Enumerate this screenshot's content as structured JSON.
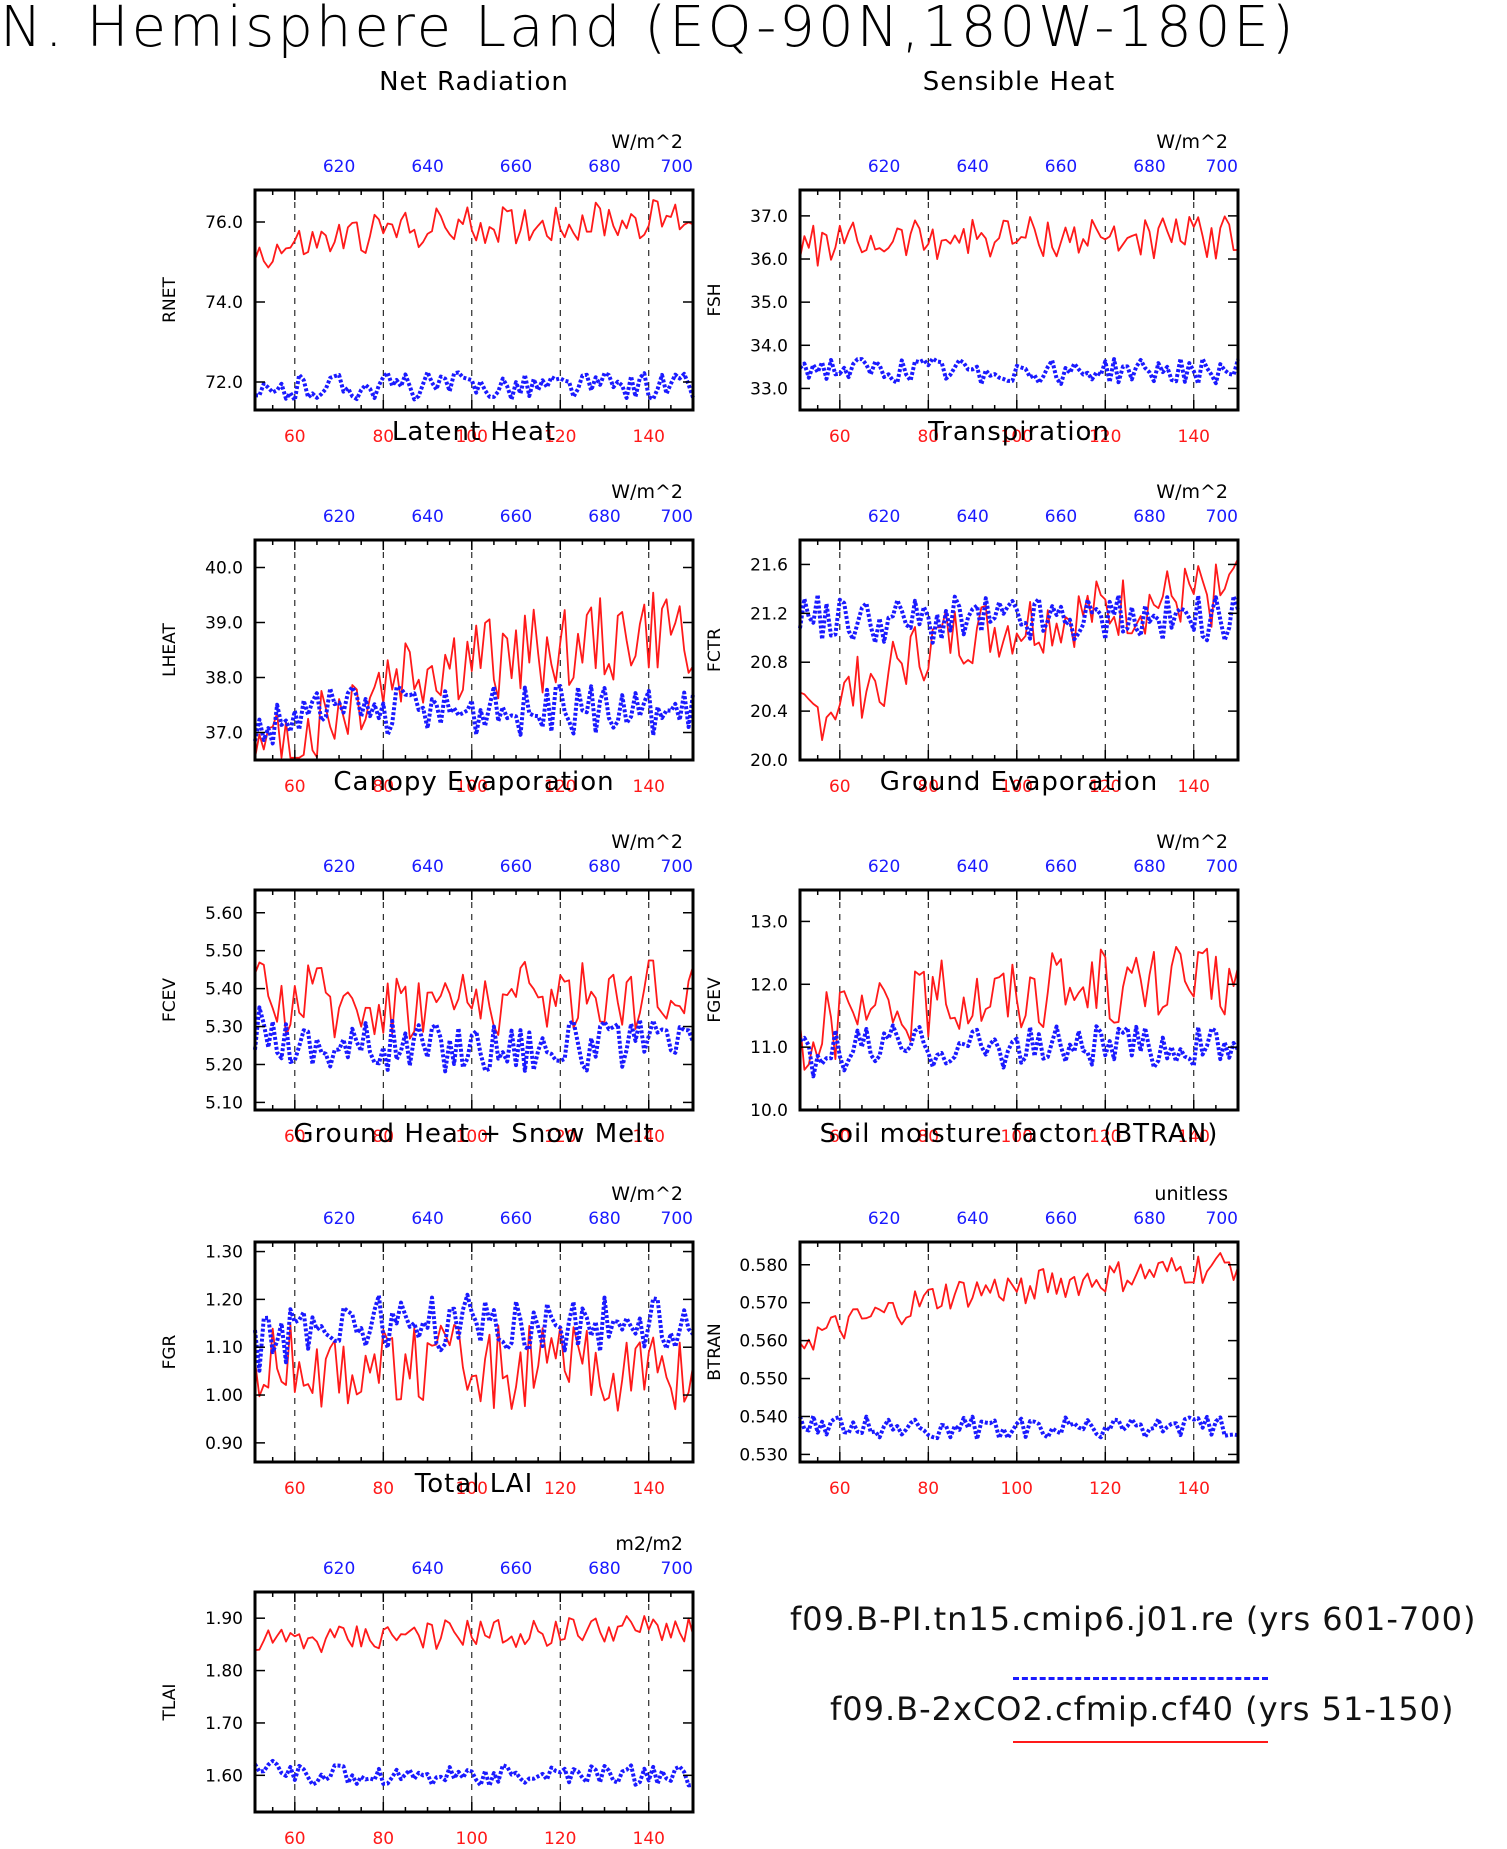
{
  "page": {
    "title": "N. Hemisphere Land (EQ-90N,180W-180E)"
  },
  "legend": [
    {
      "label": "f09.B-PI.tn15.cmip6.j01.re (yrs 601-700)",
      "color": "#1a1aff",
      "style": "dashed"
    },
    {
      "label": "f09.B-2xCO2.cfmip.cf40 (yrs 51-150)",
      "color": "#ff1a1a",
      "style": "solid"
    }
  ],
  "colors": {
    "red": "#ff1a1a",
    "blue": "#1a1aff"
  },
  "axes": {
    "bottom_label_color": "#ff1a1a",
    "top_label_color": "#1a1aff",
    "bottom_ticks": [
      60,
      80,
      100,
      120,
      140
    ],
    "top_ticks": [
      620,
      640,
      660,
      680,
      700
    ],
    "bottom_range": [
      51,
      150
    ],
    "top_range": [
      601,
      700
    ]
  },
  "chart_data": [
    {
      "id": "rnet",
      "type": "line",
      "title": "Net Radiation",
      "ylabel": "RNET",
      "units": "W/m^2",
      "ylim": [
        71.3,
        76.8
      ],
      "yticks": [
        "72.0",
        "74.0",
        "76.0"
      ],
      "series": [
        {
          "color": "red",
          "mean": 75.9,
          "amp": 0.45,
          "start": 75.4,
          "trend": 0.4
        },
        {
          "color": "blue",
          "mean": 71.9,
          "amp": 0.35,
          "start": 71.6,
          "trend": 0
        }
      ]
    },
    {
      "id": "fsh",
      "type": "line",
      "title": "Sensible Heat",
      "ylabel": "FSH",
      "units": "W/m^2",
      "ylim": [
        32.5,
        37.6
      ],
      "yticks": [
        "33.0",
        "34.0",
        "35.0",
        "36.0",
        "37.0"
      ],
      "series": [
        {
          "color": "red",
          "mean": 36.5,
          "amp": 0.45,
          "start": 36.3,
          "trend": 0
        },
        {
          "color": "blue",
          "mean": 33.4,
          "amp": 0.3,
          "start": 33.5,
          "trend": 0
        }
      ]
    },
    {
      "id": "lheat",
      "type": "line",
      "title": "Latent Heat",
      "ylabel": "LHEAT",
      "units": "W/m^2",
      "ylim": [
        36.5,
        40.5
      ],
      "yticks": [
        "37.0",
        "38.0",
        "39.0",
        "40.0"
      ],
      "series": [
        {
          "color": "red",
          "mean": 38.3,
          "amp": 0.75,
          "start": 37.0,
          "trend": 1.2
        },
        {
          "color": "blue",
          "mean": 37.4,
          "amp": 0.45,
          "start": 37.0,
          "trend": 0
        }
      ]
    },
    {
      "id": "fctr",
      "type": "line",
      "title": "Transpiration",
      "ylabel": "FCTR",
      "units": "W/m^2",
      "ylim": [
        20.0,
        21.8
      ],
      "yticks": [
        "20.0",
        "20.4",
        "20.8",
        "21.2",
        "21.6"
      ],
      "series": [
        {
          "color": "red",
          "mean": 21.1,
          "amp": 0.25,
          "start": 20.6,
          "trend": 0.6
        },
        {
          "color": "blue",
          "mean": 21.15,
          "amp": 0.2,
          "start": 21.2,
          "trend": 0
        }
      ]
    },
    {
      "id": "fcev",
      "type": "line",
      "title": "Canopy Evaporation",
      "ylabel": "FCEV",
      "units": "W/m^2",
      "ylim": [
        5.08,
        5.66
      ],
      "yticks": [
        "5.10",
        "5.20",
        "5.30",
        "5.40",
        "5.50",
        "5.60"
      ],
      "series": [
        {
          "color": "red",
          "mean": 5.37,
          "amp": 0.09,
          "start": 5.4,
          "trend": 0.05
        },
        {
          "color": "blue",
          "mean": 5.25,
          "amp": 0.07,
          "start": 5.3,
          "trend": 0
        }
      ]
    },
    {
      "id": "fgev",
      "type": "line",
      "title": "Ground Evaporation",
      "ylabel": "FGEV",
      "units": "W/m^2",
      "ylim": [
        10.0,
        13.5
      ],
      "yticks": [
        "10.0",
        "11.0",
        "12.0",
        "13.0"
      ],
      "series": [
        {
          "color": "red",
          "mean": 11.9,
          "amp": 0.55,
          "start": 11.3,
          "trend": 0.3
        },
        {
          "color": "blue",
          "mean": 11.0,
          "amp": 0.35,
          "start": 10.8,
          "trend": 0
        }
      ]
    },
    {
      "id": "fgr",
      "type": "line",
      "title": "Ground Heat + Snow Melt",
      "ylabel": "FGR",
      "units": "W/m^2",
      "ylim": [
        0.86,
        1.32
      ],
      "yticks": [
        "0.90",
        "1.00",
        "1.10",
        "1.20",
        "1.30"
      ],
      "series": [
        {
          "color": "red",
          "mean": 1.06,
          "amp": 0.08,
          "start": 1.05,
          "trend": -0.02
        },
        {
          "color": "blue",
          "mean": 1.15,
          "amp": 0.06,
          "start": 1.1,
          "trend": 0
        }
      ]
    },
    {
      "id": "btran",
      "type": "line",
      "title": "Soil moisture factor (BTRAN)",
      "ylabel": "BTRAN",
      "units": "unitless",
      "ylim": [
        0.528,
        0.586
      ],
      "yticks": [
        "0.530",
        "0.540",
        "0.550",
        "0.560",
        "0.570",
        "0.580"
      ],
      "series": [
        {
          "color": "red",
          "mean": 0.574,
          "amp": 0.004,
          "start": 0.566,
          "trend": 0.012
        },
        {
          "color": "blue",
          "mean": 0.537,
          "amp": 0.003,
          "start": 0.539,
          "trend": 0
        }
      ]
    },
    {
      "id": "tlai",
      "type": "line",
      "title": "Total LAI",
      "ylabel": "TLAI",
      "units": "m2/m2",
      "ylim": [
        1.53,
        1.95
      ],
      "yticks": [
        "1.60",
        "1.70",
        "1.80",
        "1.90"
      ],
      "series": [
        {
          "color": "red",
          "mean": 1.87,
          "amp": 0.025,
          "start": 1.86,
          "trend": 0.02
        },
        {
          "color": "blue",
          "mean": 1.6,
          "amp": 0.02,
          "start": 1.62,
          "trend": 0
        }
      ]
    }
  ]
}
